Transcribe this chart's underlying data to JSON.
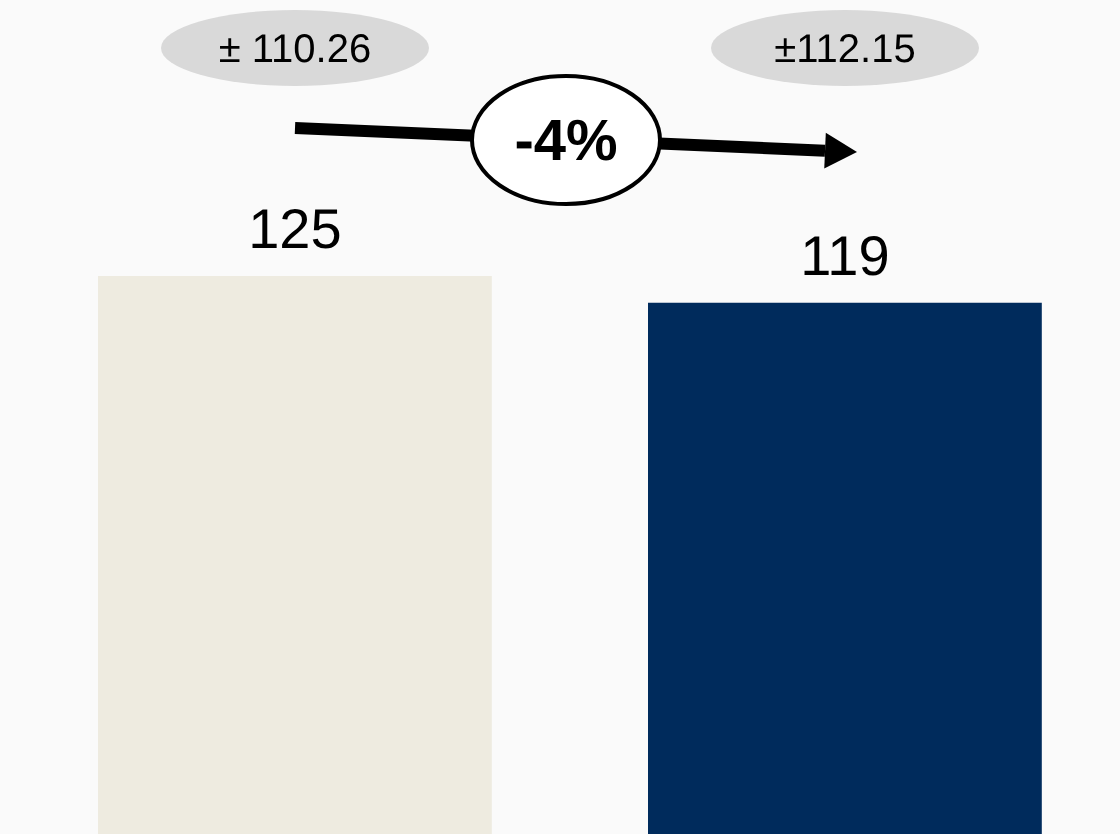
{
  "chart_data": {
    "type": "bar",
    "categories": [
      null,
      null
    ],
    "values": [
      125,
      119
    ],
    "colors": [
      "#eeebe0",
      "#002b5c"
    ],
    "data_labels": true,
    "annotations": [
      "± 110.26",
      "±112.15",
      "-4%"
    ]
  }
}
